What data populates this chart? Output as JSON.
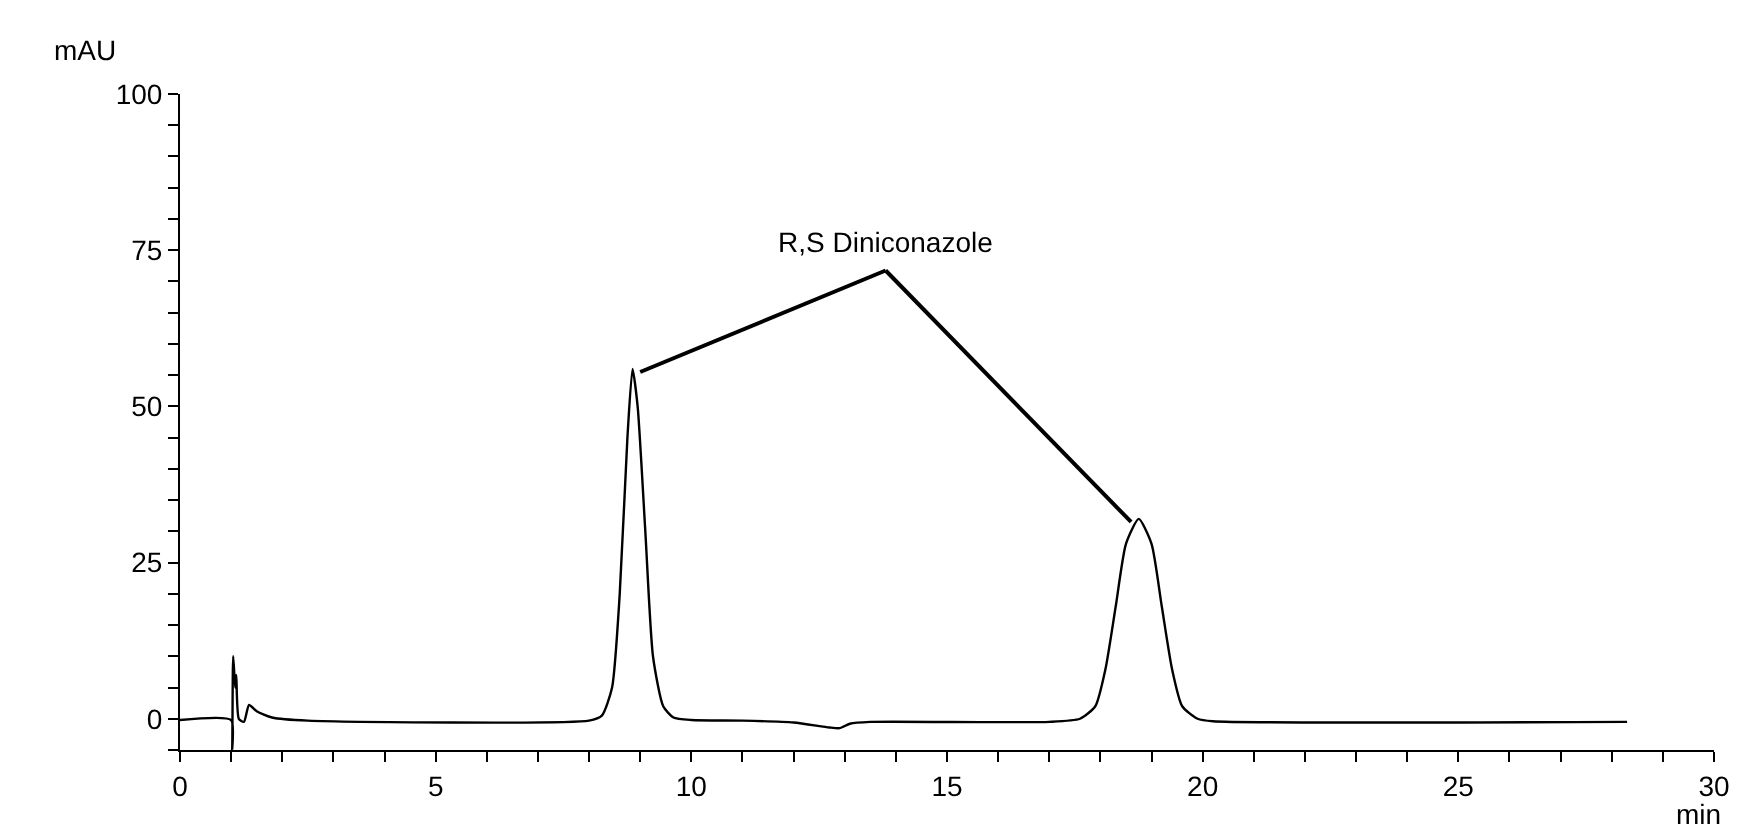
{
  "chart_data": {
    "type": "line",
    "xlabel": "min",
    "ylabel": "mAU",
    "xlim": [
      0,
      30
    ],
    "ylim": [
      -5,
      100
    ],
    "xticks": [
      0,
      {
        "value": 1,
        "label": null
      },
      {
        "value": 2,
        "label": null
      },
      {
        "value": 3,
        "label": null
      },
      {
        "value": 4,
        "label": null
      },
      5,
      {
        "value": 6,
        "label": null
      },
      {
        "value": 7,
        "label": null
      },
      {
        "value": 8,
        "label": null
      },
      {
        "value": 9,
        "label": null
      },
      10,
      {
        "value": 11,
        "label": null
      },
      {
        "value": 12,
        "label": null
      },
      {
        "value": 13,
        "label": null
      },
      {
        "value": 14,
        "label": null
      },
      15,
      {
        "value": 16,
        "label": null
      },
      {
        "value": 17,
        "label": null
      },
      {
        "value": 18,
        "label": null
      },
      {
        "value": 19,
        "label": null
      },
      20,
      {
        "value": 21,
        "label": null
      },
      {
        "value": 22,
        "label": null
      },
      {
        "value": 23,
        "label": null
      },
      {
        "value": 24,
        "label": null
      },
      25,
      {
        "value": 26,
        "label": null
      },
      {
        "value": 27,
        "label": null
      },
      {
        "value": 28,
        "label": null
      },
      {
        "value": 29,
        "label": null
      },
      30
    ],
    "yticks": [
      {
        "value": -5,
        "label": null
      },
      0,
      {
        "value": 5,
        "label": null
      },
      {
        "value": 10,
        "label": null
      },
      {
        "value": 15,
        "label": null
      },
      {
        "value": 20,
        "label": null
      },
      25,
      {
        "value": 30,
        "label": null
      },
      {
        "value": 35,
        "label": null
      },
      {
        "value": 40,
        "label": null
      },
      {
        "value": 45,
        "label": null
      },
      50,
      {
        "value": 55,
        "label": null
      },
      {
        "value": 60,
        "label": null
      },
      {
        "value": 65,
        "label": null
      },
      {
        "value": 70,
        "label": null
      },
      75,
      {
        "value": 80,
        "label": null
      },
      {
        "value": 85,
        "label": null
      },
      {
        "value": 90,
        "label": null
      },
      {
        "value": 95,
        "label": null
      },
      100
    ],
    "legend": false,
    "marker": "none",
    "line_style": "solid",
    "annotations": [
      {
        "text": "R,S Diniconazole",
        "x": 8.85,
        "y": 56
      }
    ],
    "series": [
      {
        "color": "#000000",
        "x": [
          0,
          1.0,
          1.02,
          1.04,
          1.08,
          1.1,
          1.15,
          1.25,
          1.35,
          1.5,
          1.8,
          2.5,
          8.0,
          8.25,
          8.45,
          8.6,
          8.75,
          8.85,
          8.95,
          9.1,
          9.25,
          9.45,
          9.65,
          10,
          11,
          12,
          12.7,
          12.9,
          13.1,
          13.5,
          17,
          17.6,
          17.9,
          18.1,
          18.3,
          18.5,
          18.75,
          19.0,
          19.2,
          19.4,
          19.6,
          19.9,
          20.2,
          28.3
        ],
        "values": [
          -0.2,
          -0.2,
          -5,
          10,
          5,
          7,
          0,
          -0.5,
          2.2,
          1.2,
          0.2,
          -0.3,
          -0.3,
          0.5,
          5,
          20,
          45,
          56,
          50,
          30,
          10,
          2,
          0.2,
          -0.2,
          -0.3,
          -0.6,
          -1.4,
          -1.5,
          -0.8,
          -0.5,
          -0.5,
          0,
          2,
          8,
          18,
          28,
          32,
          28,
          18,
          8,
          2,
          0,
          -0.4,
          -0.5
        ]
      }
    ]
  }
}
